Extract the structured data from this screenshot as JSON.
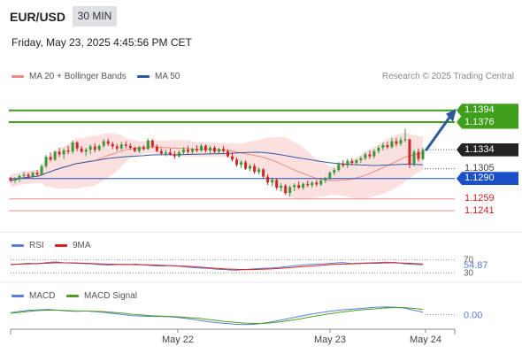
{
  "header": {
    "symbol": "EUR/USD",
    "timeframe": "30 MIN",
    "datetime": "Friday, May 23, 2025 4:45:56 PM CET"
  },
  "legend_main": [
    {
      "label": "MA 20 + Bollinger Bands",
      "color": "#f28b82"
    },
    {
      "label": "MA 50",
      "color": "#2c5aa0"
    }
  ],
  "credit": "Research © 2025 Trading Central",
  "legend_rsi": [
    {
      "label": "RSI",
      "color": "#5b7fd6"
    },
    {
      "label": "9MA",
      "color": "#e02020"
    }
  ],
  "legend_macd": [
    {
      "label": "MACD",
      "color": "#5b7fd6"
    },
    {
      "label": "MACD Signal",
      "color": "#4aa020"
    }
  ],
  "colors": {
    "bull": "#3a9a3a",
    "bear": "#cc2a2a",
    "green_level": "#3f9e1a",
    "blue_level": "#1a4fc8",
    "red_level": "#f08a8a",
    "band_fill": "#fbdada",
    "ma50": "#2c5aa0",
    "ma20": "#f28b82",
    "arrow": "#2c5aa0"
  },
  "chart_data": [
    {
      "type": "candlestick",
      "title": "EUR/USD",
      "x_tick_labels": [
        "May 22",
        "May 23",
        "May 24"
      ],
      "ylim": [
        1.1225,
        1.143
      ],
      "levels": [
        {
          "value": 1.1394,
          "label": "1.1394",
          "style": "green",
          "line": true
        },
        {
          "value": 1.1376,
          "label": "1.1376",
          "style": "green",
          "line": true
        },
        {
          "value": 1.1334,
          "label": "1.1334",
          "style": "last",
          "line": false
        },
        {
          "value": 1.1305,
          "label": "1.1305",
          "style": "plain",
          "line": false
        },
        {
          "value": 1.129,
          "label": "1.1290",
          "style": "blue",
          "line": true
        },
        {
          "value": 1.1259,
          "label": "1.1259",
          "style": "red",
          "line": true
        },
        {
          "value": 1.1241,
          "label": "1.1241",
          "style": "red",
          "line": true
        }
      ],
      "arrow": {
        "from_price": 1.1334,
        "to_price": 1.1394,
        "direction": "up"
      },
      "candles": [
        [
          1.129,
          1.1293,
          1.1284,
          1.1287
        ],
        [
          1.1287,
          1.1292,
          1.1283,
          1.1289
        ],
        [
          1.1289,
          1.1296,
          1.1285,
          1.1294
        ],
        [
          1.1294,
          1.13,
          1.1291,
          1.1296
        ],
        [
          1.1296,
          1.1299,
          1.129,
          1.1293
        ],
        [
          1.1293,
          1.1301,
          1.1289,
          1.1299
        ],
        [
          1.1299,
          1.1303,
          1.1294,
          1.1296
        ],
        [
          1.1296,
          1.1312,
          1.1295,
          1.1309
        ],
        [
          1.1309,
          1.1326,
          1.1306,
          1.1323
        ],
        [
          1.1323,
          1.133,
          1.1316,
          1.1319
        ],
        [
          1.1319,
          1.1333,
          1.1317,
          1.1331
        ],
        [
          1.1331,
          1.1337,
          1.1323,
          1.1327
        ],
        [
          1.1327,
          1.1336,
          1.132,
          1.1333
        ],
        [
          1.1333,
          1.134,
          1.1327,
          1.1331
        ],
        [
          1.1331,
          1.1348,
          1.1328,
          1.1345
        ],
        [
          1.1345,
          1.1347,
          1.1332,
          1.1336
        ],
        [
          1.1336,
          1.134,
          1.1329,
          1.1331
        ],
        [
          1.1331,
          1.1337,
          1.1324,
          1.1334
        ],
        [
          1.1334,
          1.1342,
          1.1327,
          1.1339
        ],
        [
          1.1339,
          1.1344,
          1.133,
          1.1334
        ],
        [
          1.1334,
          1.1342,
          1.1332,
          1.134
        ],
        [
          1.134,
          1.135,
          1.1337,
          1.1347
        ],
        [
          1.1347,
          1.1351,
          1.134,
          1.1343
        ],
        [
          1.1343,
          1.1346,
          1.1335,
          1.1339
        ],
        [
          1.1339,
          1.1343,
          1.1332,
          1.1336
        ],
        [
          1.1336,
          1.1346,
          1.1333,
          1.1342
        ],
        [
          1.1342,
          1.1347,
          1.1336,
          1.134
        ],
        [
          1.134,
          1.1344,
          1.1334,
          1.1337
        ],
        [
          1.1337,
          1.1339,
          1.133,
          1.1332
        ],
        [
          1.1332,
          1.134,
          1.1329,
          1.1338
        ],
        [
          1.1338,
          1.1341,
          1.1333,
          1.1335
        ],
        [
          1.1335,
          1.1351,
          1.1334,
          1.1348
        ],
        [
          1.1348,
          1.135,
          1.1336,
          1.1339
        ],
        [
          1.1339,
          1.1342,
          1.133,
          1.1332
        ],
        [
          1.1332,
          1.1336,
          1.1326,
          1.1328
        ],
        [
          1.1328,
          1.1334,
          1.1324,
          1.133
        ],
        [
          1.133,
          1.1336,
          1.1325,
          1.1327
        ],
        [
          1.1327,
          1.1332,
          1.132,
          1.1324
        ],
        [
          1.1324,
          1.1333,
          1.1322,
          1.133
        ],
        [
          1.133,
          1.1338,
          1.1327,
          1.1334
        ],
        [
          1.1334,
          1.134,
          1.1328,
          1.1331
        ],
        [
          1.1331,
          1.1337,
          1.1327,
          1.1335
        ],
        [
          1.1335,
          1.1341,
          1.133,
          1.1333
        ],
        [
          1.1333,
          1.1343,
          1.1331,
          1.134
        ],
        [
          1.134,
          1.1342,
          1.133,
          1.1333
        ],
        [
          1.1333,
          1.134,
          1.1328,
          1.1337
        ],
        [
          1.1337,
          1.134,
          1.1329,
          1.1331
        ],
        [
          1.1331,
          1.1337,
          1.1328,
          1.1335
        ],
        [
          1.1335,
          1.134,
          1.1329,
          1.1332
        ],
        [
          1.1332,
          1.1334,
          1.1322,
          1.1324
        ],
        [
          1.1324,
          1.133,
          1.1316,
          1.1319
        ],
        [
          1.1319,
          1.1322,
          1.1308,
          1.1311
        ],
        [
          1.1311,
          1.1318,
          1.1306,
          1.1315
        ],
        [
          1.1315,
          1.1318,
          1.1303,
          1.1305
        ],
        [
          1.1305,
          1.1312,
          1.1301,
          1.1309
        ],
        [
          1.1309,
          1.1313,
          1.1297,
          1.13
        ],
        [
          1.13,
          1.1307,
          1.1296,
          1.1304
        ],
        [
          1.1304,
          1.1306,
          1.1291,
          1.1293
        ],
        [
          1.1293,
          1.1297,
          1.128,
          1.1284
        ],
        [
          1.1284,
          1.1292,
          1.1278,
          1.1288
        ],
        [
          1.1288,
          1.1291,
          1.1273,
          1.1276
        ],
        [
          1.1276,
          1.1283,
          1.127,
          1.1279
        ],
        [
          1.1279,
          1.1282,
          1.1265,
          1.1268
        ],
        [
          1.1268,
          1.128,
          1.1262,
          1.1277
        ],
        [
          1.1277,
          1.1283,
          1.1271,
          1.128
        ],
        [
          1.128,
          1.1286,
          1.1274,
          1.1276
        ],
        [
          1.1276,
          1.1284,
          1.1273,
          1.1282
        ],
        [
          1.1282,
          1.1287,
          1.1277,
          1.128
        ],
        [
          1.128,
          1.1286,
          1.1276,
          1.1284
        ],
        [
          1.1284,
          1.1288,
          1.1278,
          1.1281
        ],
        [
          1.1281,
          1.1289,
          1.1279,
          1.1287
        ],
        [
          1.1287,
          1.1293,
          1.1283,
          1.129
        ],
        [
          1.129,
          1.1301,
          1.1288,
          1.1299
        ],
        [
          1.1299,
          1.1306,
          1.1295,
          1.1303
        ],
        [
          1.1303,
          1.1315,
          1.13,
          1.1313
        ],
        [
          1.1313,
          1.1318,
          1.1307,
          1.131
        ],
        [
          1.131,
          1.132,
          1.1306,
          1.1317
        ],
        [
          1.1317,
          1.1321,
          1.131,
          1.1314
        ],
        [
          1.1314,
          1.132,
          1.131,
          1.1318
        ],
        [
          1.1318,
          1.1324,
          1.1314,
          1.1321
        ],
        [
          1.1321,
          1.133,
          1.1318,
          1.1327
        ],
        [
          1.1327,
          1.1333,
          1.132,
          1.1324
        ],
        [
          1.1324,
          1.1335,
          1.1321,
          1.1332
        ],
        [
          1.1332,
          1.134,
          1.1328,
          1.1337
        ],
        [
          1.1337,
          1.1345,
          1.1333,
          1.1341
        ],
        [
          1.1341,
          1.1346,
          1.1335,
          1.1338
        ],
        [
          1.1338,
          1.1352,
          1.1336,
          1.1347
        ],
        [
          1.1347,
          1.1352,
          1.1339,
          1.1343
        ],
        [
          1.1343,
          1.1353,
          1.134,
          1.1349
        ],
        [
          1.1349,
          1.1366,
          1.1345,
          1.135
        ],
        [
          1.135,
          1.1351,
          1.1306,
          1.1312
        ],
        [
          1.1312,
          1.1334,
          1.1309,
          1.1331
        ],
        [
          1.1331,
          1.1336,
          1.1316,
          1.132
        ],
        [
          1.132,
          1.1337,
          1.1318,
          1.1334
        ]
      ]
    },
    {
      "type": "line",
      "title": "RSI",
      "y_tick_labels": [
        "70",
        "30"
      ],
      "last_value_label": "54.87",
      "series": [
        {
          "name": "RSI",
          "values": [
            55,
            57,
            60,
            58,
            62,
            64,
            61,
            60,
            59,
            58,
            55,
            54,
            56,
            55,
            57,
            54,
            52,
            51,
            53,
            50,
            47,
            45,
            44,
            41,
            40,
            38,
            40,
            42,
            44,
            45,
            47,
            50,
            53,
            55,
            57,
            58,
            60,
            62,
            59,
            60,
            61,
            62,
            63,
            62,
            58,
            56,
            55
          ]
        },
        {
          "name": "9MA",
          "values": [
            56,
            57,
            58,
            59,
            60,
            61,
            61,
            61,
            60,
            59,
            58,
            57,
            56,
            56,
            55,
            55,
            54,
            53,
            52,
            51,
            50,
            48,
            46,
            44,
            42,
            41,
            40,
            40,
            41,
            42,
            44,
            46,
            48,
            50,
            52,
            54,
            56,
            57,
            58,
            59,
            60,
            60,
            61,
            61,
            60,
            59,
            57
          ]
        }
      ]
    },
    {
      "type": "line",
      "title": "MACD",
      "last_value_label": "0.00",
      "series": [
        {
          "name": "MACD",
          "values": [
            0.5,
            0.9,
            1.2,
            1.3,
            1.4,
            1.2,
            1.0,
            0.9,
            1.0,
            0.8,
            0.6,
            0.3,
            0.0,
            -0.3,
            -0.4,
            -0.5,
            -0.5,
            -0.6,
            -0.8,
            -1.1,
            -1.5,
            -1.9,
            -2.2,
            -2.4,
            -2.6,
            -2.7,
            -2.6,
            -2.3,
            -1.9,
            -1.4,
            -0.9,
            -0.4,
            0.1,
            0.5,
            0.9,
            1.2,
            1.4,
            1.6,
            1.8,
            2.0,
            2.1,
            2.0,
            1.8,
            1.2,
            0.7
          ]
        },
        {
          "name": "MACD Signal",
          "values": [
            0.4,
            0.6,
            0.9,
            1.1,
            1.2,
            1.2,
            1.1,
            1.0,
            1.0,
            0.9,
            0.8,
            0.6,
            0.4,
            0.1,
            -0.1,
            -0.3,
            -0.4,
            -0.5,
            -0.6,
            -0.8,
            -1.0,
            -1.3,
            -1.6,
            -1.9,
            -2.1,
            -2.3,
            -2.4,
            -2.4,
            -2.2,
            -1.9,
            -1.5,
            -1.1,
            -0.6,
            -0.2,
            0.2,
            0.6,
            0.9,
            1.2,
            1.4,
            1.6,
            1.8,
            1.9,
            1.9,
            1.7,
            1.4
          ]
        }
      ]
    }
  ]
}
